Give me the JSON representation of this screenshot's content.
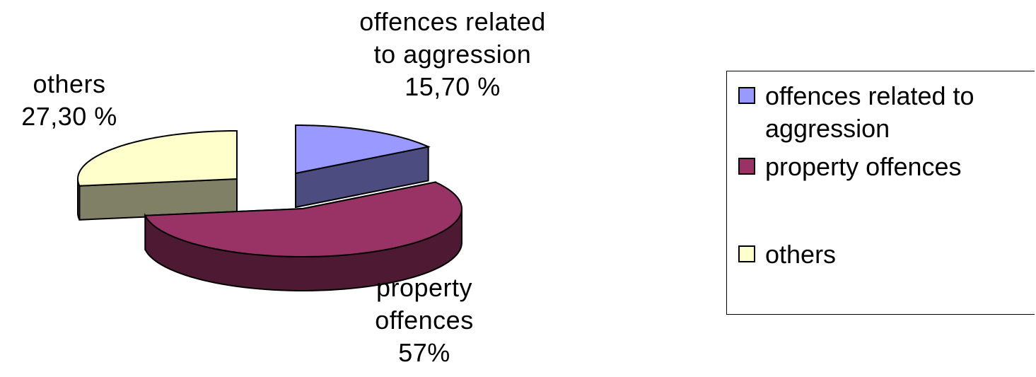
{
  "chart_data": {
    "type": "pie",
    "title": "",
    "three_d": true,
    "exploded": true,
    "legend_position": "right",
    "slices": [
      {
        "name": "offences related to aggression",
        "value": 15.7,
        "label": "offences related\nto aggression\n15,70 %",
        "color": "#9999FF",
        "side_color": "#4C4C80"
      },
      {
        "name": "property offences",
        "value": 57,
        "label": "property\noffences\n57%",
        "color": "#993366",
        "side_color": "#4D1933"
      },
      {
        "name": "others",
        "value": 27.3,
        "label": "others\n27,30 %",
        "color": "#FFFFCC",
        "side_color": "#808066"
      }
    ],
    "legend": [
      {
        "label": "offences related to aggression",
        "color": "#9999FF"
      },
      {
        "label": "property offences",
        "color": "#993366"
      },
      {
        "label": "others",
        "color": "#FFFFCC"
      }
    ]
  }
}
